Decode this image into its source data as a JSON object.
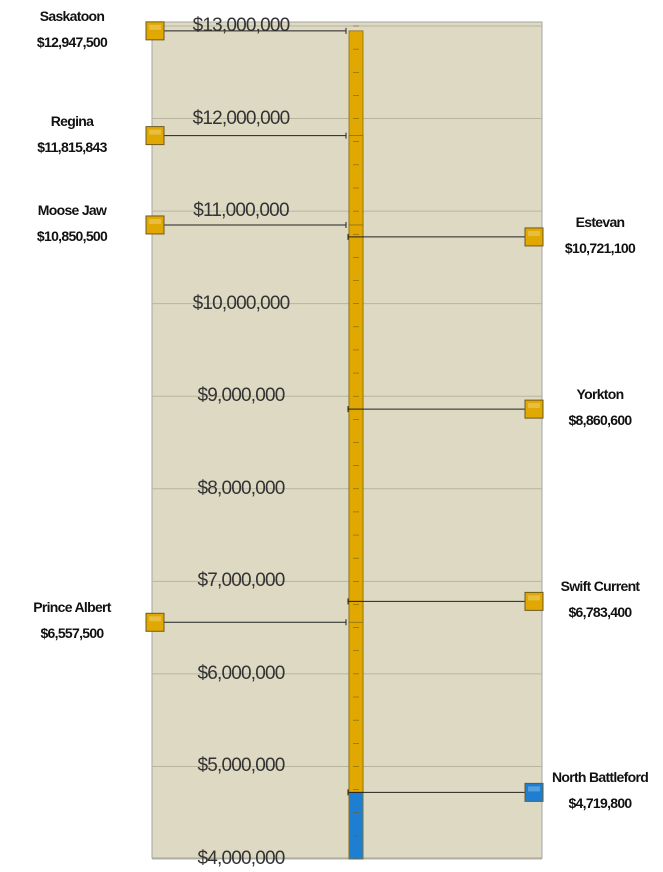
{
  "chart_data": {
    "type": "gauge-line",
    "categories": [
      "Saskatoon",
      "Regina",
      "Moose Jaw",
      "Estevan",
      "Yorkton",
      "Swift Current",
      "Prince Albert",
      "North Battleford"
    ],
    "values": [
      12947500,
      11815843,
      10850500,
      10721100,
      8860600,
      6783400,
      6557500,
      4719800
    ],
    "value_labels": [
      "$12,947,500",
      "$11,815,843",
      "$10,850,500",
      "$10,721,100",
      "$8,860,600",
      "$6,783,400",
      "$6,557,500",
      "$4,719,800"
    ],
    "colors": [
      "#e0a800",
      "#e0a800",
      "#e0a800",
      "#e0a800",
      "#e0a800",
      "#e0a800",
      "#e0a800",
      "#1e7fd2"
    ],
    "ylim": [
      4000000,
      13000000
    ],
    "yticks": [
      {
        "value": 4000000,
        "label": "$4,000,000"
      },
      {
        "value": 5000000,
        "label": "$5,000,000"
      },
      {
        "value": 6000000,
        "label": "$6,000,000"
      },
      {
        "value": 7000000,
        "label": "$7,000,000"
      },
      {
        "value": 8000000,
        "label": "$8,000,000"
      },
      {
        "value": 9000000,
        "label": "$9,000,000"
      },
      {
        "value": 10000000,
        "label": "$10,000,000"
      },
      {
        "value": 11000000,
        "label": "$11,000,000"
      },
      {
        "value": 12000000,
        "label": "$12,000,000"
      },
      {
        "value": 13000000,
        "label": "$13,000,000"
      }
    ],
    "grid": true
  }
}
